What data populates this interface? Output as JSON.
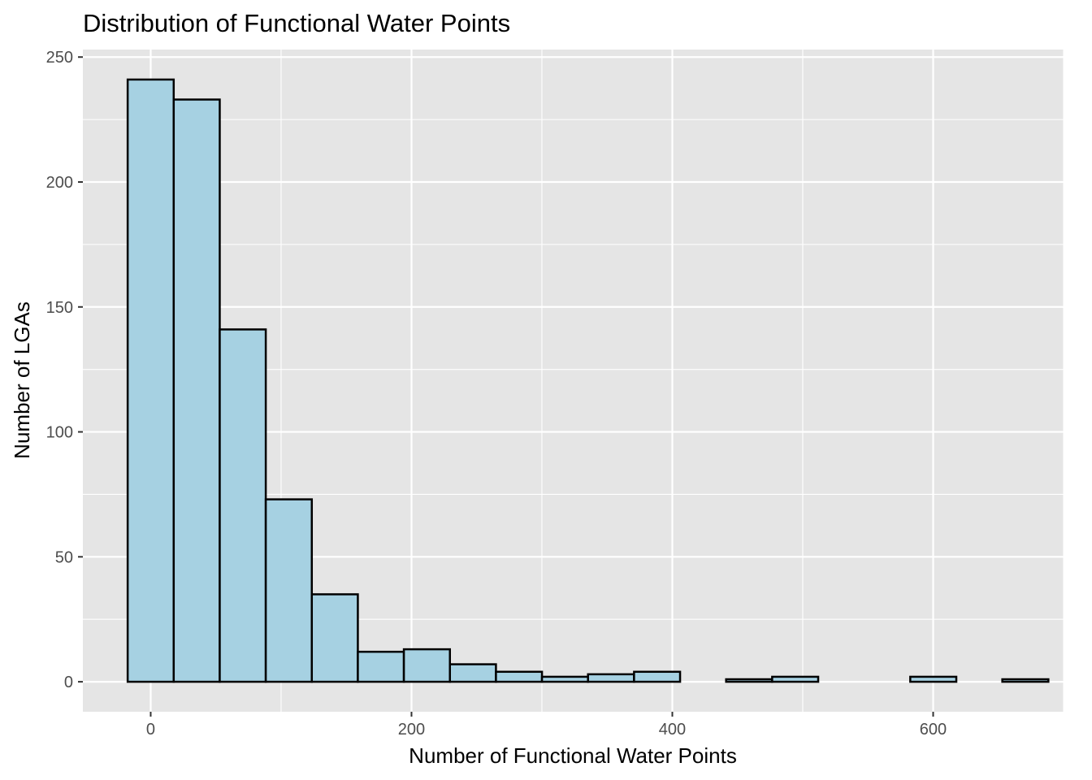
{
  "chart_data": {
    "type": "bar",
    "subtype": "histogram",
    "title": "Distribution of Functional Water Points",
    "xlabel": "Number of Functional Water Points",
    "ylabel": "Number of LGAs",
    "xlim": [
      -52,
      700
    ],
    "ylim": [
      -12,
      253
    ],
    "x_ticks": [
      0,
      200,
      400,
      600
    ],
    "x_tick_labels": [
      "0",
      "200",
      "400",
      "600"
    ],
    "y_ticks": [
      0,
      50,
      100,
      150,
      200,
      250
    ],
    "y_tick_labels": [
      "0",
      "50",
      "100",
      "150",
      "200",
      "250"
    ],
    "bin_width": 35.3,
    "bin_starts": [
      -17.65,
      17.65,
      52.95,
      88.25,
      123.55,
      158.85,
      194.15,
      229.45,
      264.75,
      300.05,
      335.35,
      370.65,
      405.95,
      441.25,
      476.55,
      511.85,
      547.15,
      582.45,
      617.75,
      653.05
    ],
    "values": [
      241,
      233,
      141,
      73,
      35,
      12,
      13,
      7,
      4,
      2,
      3,
      4,
      0,
      1,
      2,
      0,
      0,
      2,
      0,
      1
    ],
    "grid": true,
    "legend": "none",
    "colors": {
      "bar_fill": "#a6d1e2",
      "bar_stroke": "#000000",
      "panel_background": "#e5e5e5",
      "grid_major": "#ffffff",
      "tick_text": "#4d4d4d"
    }
  }
}
